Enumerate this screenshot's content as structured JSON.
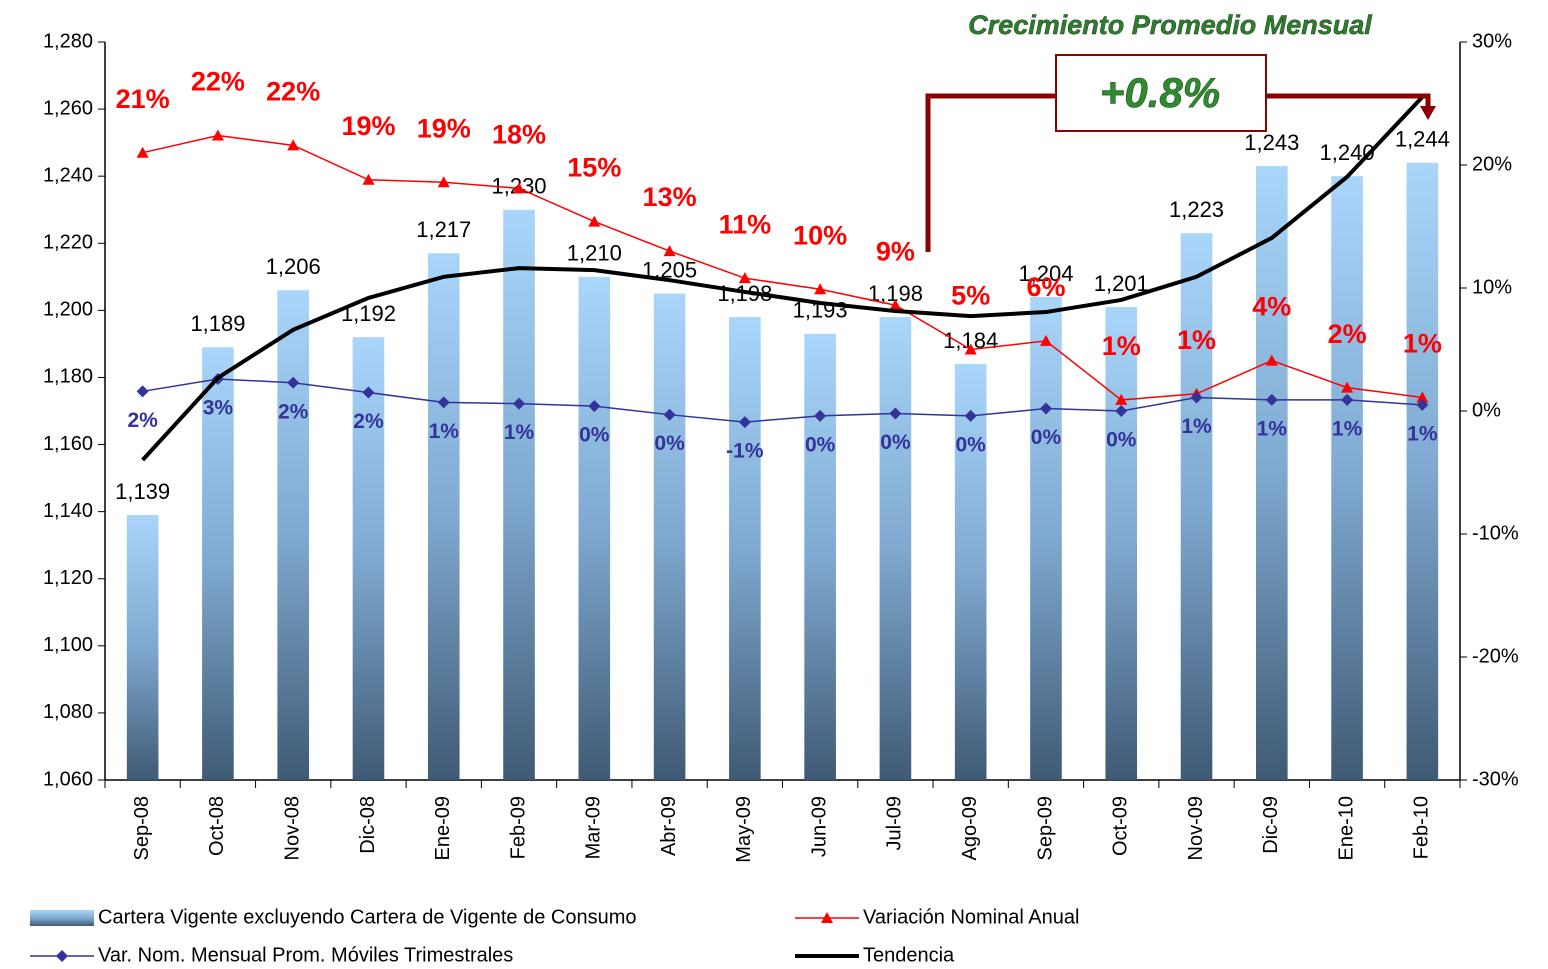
{
  "chart_data": {
    "type": "bar",
    "annotations": [
      "Crecimiento Promedio Mensual",
      "+0.8%"
    ],
    "categories": [
      "Sep-08",
      "Oct-08",
      "Nov-08",
      "Dic-08",
      "Ene-09",
      "Feb-09",
      "Mar-09",
      "Abr-09",
      "May-09",
      "Jun-09",
      "Jul-09",
      "Ago-09",
      "Sep-09",
      "Oct-09",
      "Nov-09",
      "Dic-09",
      "Ene-10",
      "Feb-10"
    ],
    "ylim": [
      1060,
      1280
    ],
    "yticks": [
      {
        "value": 1060,
        "label": "1,060"
      },
      {
        "value": 1080,
        "label": "1,080"
      },
      {
        "value": 1100,
        "label": "1,100"
      },
      {
        "value": 1120,
        "label": "1,120"
      },
      {
        "value": 1140,
        "label": "1,140"
      },
      {
        "value": 1160,
        "label": "1,160"
      },
      {
        "value": 1180,
        "label": "1,180"
      },
      {
        "value": 1200,
        "label": "1,200"
      },
      {
        "value": 1220,
        "label": "1,220"
      },
      {
        "value": 1240,
        "label": "1,240"
      },
      {
        "value": 1260,
        "label": "1,260"
      },
      {
        "value": 1280,
        "label": "1,280"
      }
    ],
    "y2lim": [
      -30,
      30
    ],
    "y2ticks": [
      {
        "value": -30,
        "label": "-30%"
      },
      {
        "value": -20,
        "label": "-20%"
      },
      {
        "value": -10,
        "label": "-10%"
      },
      {
        "value": 0,
        "label": "0%"
      },
      {
        "value": 10,
        "label": "10%"
      },
      {
        "value": 20,
        "label": "20%"
      },
      {
        "value": 30,
        "label": "30%"
      }
    ],
    "series": [
      {
        "name": "Cartera Vigente excluyendo Cartera de Vigente de Consumo",
        "type": "bar",
        "color": "#8fc0ea",
        "values": [
          1139,
          1189,
          1206,
          1192,
          1217,
          1230,
          1210,
          1205,
          1198,
          1193,
          1198,
          1184,
          1204,
          1201,
          1223,
          1243,
          1240,
          1244
        ],
        "value_labels": [
          "1,139",
          "1,189",
          "1,206",
          "1,192",
          "1,217",
          "1,230",
          "1,210",
          "1,205",
          "1,198",
          "1,193",
          "1,198",
          "1,184",
          "1,204",
          "1,201",
          "1,223",
          "1,243",
          "1,240",
          "1,244"
        ]
      },
      {
        "name": "Variación Nominal Anual",
        "type": "line",
        "axis": "y2",
        "color": "#ff0000",
        "marker": "triangle",
        "values": [
          21.0,
          22.4,
          21.6,
          18.8,
          18.6,
          18.1,
          15.4,
          13.0,
          10.8,
          9.9,
          8.6,
          5.0,
          5.7,
          0.9,
          1.4,
          4.1,
          1.9,
          1.1
        ],
        "value_labels": [
          "21%",
          "22%",
          "22%",
          "19%",
          "19%",
          "18%",
          "15%",
          "13%",
          "11%",
          "10%",
          "9%",
          "5%",
          "6%",
          "1%",
          "1%",
          "4%",
          "2%",
          "1%"
        ]
      },
      {
        "name": "Var. Nom. Mensual Prom. Móviles Trimestrales",
        "type": "line",
        "axis": "y2",
        "color": "#333399",
        "marker": "diamond",
        "values": [
          1.6,
          2.6,
          2.3,
          1.5,
          0.7,
          0.6,
          0.4,
          -0.3,
          -0.9,
          -0.4,
          -0.2,
          -0.4,
          0.2,
          0.0,
          1.1,
          0.9,
          0.9,
          0.5
        ],
        "value_labels": [
          "2%",
          "3%",
          "2%",
          "2%",
          "1%",
          "1%",
          "0%",
          "0%",
          "-1%",
          "0%",
          "0%",
          "0%",
          "0%",
          "0%",
          "1%",
          "1%",
          "1%",
          "1%"
        ]
      },
      {
        "name": "Tendencia",
        "type": "line",
        "color": "#000000",
        "values": [
          1155.4,
          1179.9,
          1194.2,
          1203.7,
          1210.0,
          1212.6,
          1212.0,
          1209.0,
          1205.5,
          1202.2,
          1199.8,
          1198.3,
          1199.5,
          1203.1,
          1210.0,
          1221.6,
          1239.8,
          1263.6
        ]
      }
    ]
  }
}
